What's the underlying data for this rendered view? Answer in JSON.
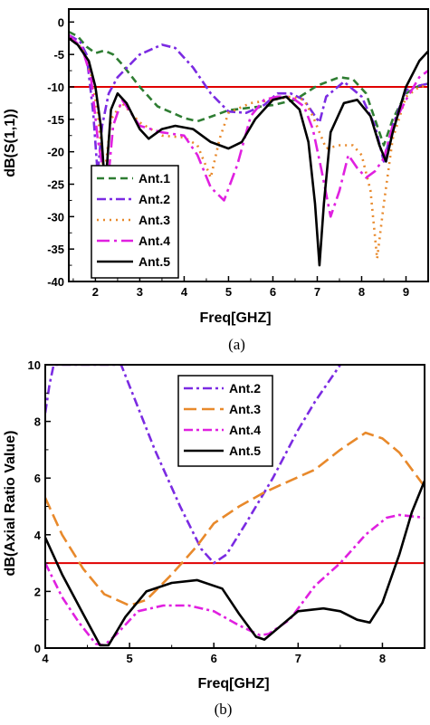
{
  "chart_data": [
    {
      "type": "line",
      "panel_label": "(a)",
      "xlabel": "Freq[GHZ]",
      "ylabel": "dB(S(1,1))",
      "xlim": [
        1.4,
        9.5
      ],
      "ylim": [
        -40,
        2
      ],
      "xticks": [
        "2",
        "3",
        "4",
        "5",
        "6",
        "7",
        "8",
        "9"
      ],
      "yticks": [
        "0",
        "-5",
        "-10",
        "-15",
        "-20",
        "-25",
        "-30",
        "-35",
        "-40"
      ],
      "grid": false,
      "legend_position": "bottom-left",
      "reference_line": {
        "y": -10,
        "color": "#e00000"
      },
      "series": [
        {
          "name": "Ant.1",
          "color": "#2e7d32",
          "dash": "8,5",
          "points": [
            [
              1.4,
              -1.5
            ],
            [
              1.6,
              -2.2
            ],
            [
              1.8,
              -3.8
            ],
            [
              2.0,
              -4.8
            ],
            [
              2.2,
              -4.4
            ],
            [
              2.4,
              -5.0
            ],
            [
              2.6,
              -6.5
            ],
            [
              3.0,
              -10.0
            ],
            [
              3.4,
              -13.0
            ],
            [
              4.0,
              -14.8
            ],
            [
              4.3,
              -15.3
            ],
            [
              4.6,
              -14.6
            ],
            [
              5.0,
              -13.6
            ],
            [
              5.5,
              -13.2
            ],
            [
              6.0,
              -12.8
            ],
            [
              6.5,
              -12.0
            ],
            [
              7.0,
              -9.8
            ],
            [
              7.5,
              -8.5
            ],
            [
              7.8,
              -8.8
            ],
            [
              8.1,
              -11.0
            ],
            [
              8.3,
              -15.0
            ],
            [
              8.5,
              -19.0
            ],
            [
              8.7,
              -15.0
            ],
            [
              9.0,
              -11.0
            ],
            [
              9.3,
              -9.8
            ],
            [
              9.5,
              -9.5
            ]
          ]
        },
        {
          "name": "Ant.2",
          "color": "#7b2be2",
          "dash": "10,4,3,4",
          "points": [
            [
              1.4,
              -2.0
            ],
            [
              1.65,
              -3.0
            ],
            [
              1.8,
              -5.0
            ],
            [
              1.95,
              -14.0
            ],
            [
              2.05,
              -23.5
            ],
            [
              2.15,
              -16.0
            ],
            [
              2.3,
              -11.0
            ],
            [
              2.5,
              -8.5
            ],
            [
              3.0,
              -5.0
            ],
            [
              3.5,
              -3.5
            ],
            [
              3.8,
              -4.0
            ],
            [
              4.2,
              -7.0
            ],
            [
              4.6,
              -11.0
            ],
            [
              5.0,
              -13.8
            ],
            [
              5.4,
              -14.0
            ],
            [
              5.8,
              -12.8
            ],
            [
              6.1,
              -11.0
            ],
            [
              6.4,
              -11.0
            ],
            [
              6.7,
              -12.0
            ],
            [
              6.9,
              -14.0
            ],
            [
              7.05,
              -15.5
            ],
            [
              7.2,
              -11.5
            ],
            [
              7.6,
              -9.2
            ],
            [
              8.0,
              -11.5
            ],
            [
              8.3,
              -16.0
            ],
            [
              8.5,
              -21.5
            ],
            [
              8.7,
              -16.0
            ],
            [
              9.0,
              -10.5
            ],
            [
              9.3,
              -9.8
            ],
            [
              9.5,
              -9.5
            ]
          ]
        },
        {
          "name": "Ant.3",
          "color": "#e8892b",
          "dash": "2,5",
          "points": [
            [
              1.4,
              -2.5
            ],
            [
              1.7,
              -4.0
            ],
            [
              1.9,
              -8.0
            ],
            [
              2.05,
              -14.0
            ],
            [
              2.2,
              -24.0
            ],
            [
              2.35,
              -15.0
            ],
            [
              2.6,
              -12.5
            ],
            [
              3.0,
              -15.5
            ],
            [
              3.5,
              -17.5
            ],
            [
              4.0,
              -17.8
            ],
            [
              4.3,
              -19.0
            ],
            [
              4.6,
              -24.0
            ],
            [
              4.8,
              -18.0
            ],
            [
              5.0,
              -14.0
            ],
            [
              5.5,
              -12.5
            ],
            [
              6.0,
              -12.0
            ],
            [
              6.4,
              -11.5
            ],
            [
              6.7,
              -12.0
            ],
            [
              6.9,
              -14.5
            ],
            [
              7.05,
              -17.0
            ],
            [
              7.2,
              -19.5
            ],
            [
              7.5,
              -19.0
            ],
            [
              7.8,
              -19.0
            ],
            [
              8.0,
              -20.5
            ],
            [
              8.2,
              -26.0
            ],
            [
              8.35,
              -36.5
            ],
            [
              8.5,
              -28.0
            ],
            [
              8.7,
              -18.0
            ],
            [
              9.0,
              -11.5
            ],
            [
              9.3,
              -10.0
            ],
            [
              9.5,
              -9.8
            ]
          ]
        },
        {
          "name": "Ant.4",
          "color": "#e020e0",
          "dash": "14,5,3,5",
          "points": [
            [
              1.4,
              -2.0
            ],
            [
              1.7,
              -4.0
            ],
            [
              1.9,
              -8.5
            ],
            [
              2.05,
              -18.0
            ],
            [
              2.15,
              -22.0
            ],
            [
              2.25,
              -27.0
            ],
            [
              2.4,
              -16.0
            ],
            [
              2.6,
              -12.0
            ],
            [
              3.0,
              -16.0
            ],
            [
              3.5,
              -17.0
            ],
            [
              4.0,
              -17.5
            ],
            [
              4.3,
              -20.5
            ],
            [
              4.6,
              -25.5
            ],
            [
              4.9,
              -27.5
            ],
            [
              5.2,
              -22.0
            ],
            [
              5.5,
              -14.5
            ],
            [
              5.8,
              -12.0
            ],
            [
              6.1,
              -11.5
            ],
            [
              6.4,
              -11.5
            ],
            [
              6.7,
              -13.0
            ],
            [
              6.9,
              -16.5
            ],
            [
              7.1,
              -23.0
            ],
            [
              7.3,
              -30.0
            ],
            [
              7.5,
              -26.0
            ],
            [
              7.7,
              -20.5
            ],
            [
              7.9,
              -22.5
            ],
            [
              8.1,
              -24.0
            ],
            [
              8.3,
              -23.0
            ],
            [
              8.5,
              -21.0
            ],
            [
              8.7,
              -16.0
            ],
            [
              9.0,
              -12.0
            ],
            [
              9.3,
              -8.5
            ],
            [
              9.5,
              -7.5
            ]
          ]
        },
        {
          "name": "Ant.5",
          "color": "#000000",
          "dash": "",
          "points": [
            [
              1.4,
              -2.5
            ],
            [
              1.6,
              -3.5
            ],
            [
              1.85,
              -6.0
            ],
            [
              2.0,
              -10.0
            ],
            [
              2.12,
              -16.0
            ],
            [
              2.22,
              -26.0
            ],
            [
              2.35,
              -13.5
            ],
            [
              2.5,
              -11.0
            ],
            [
              2.7,
              -12.5
            ],
            [
              3.0,
              -16.5
            ],
            [
              3.2,
              -18.0
            ],
            [
              3.5,
              -16.5
            ],
            [
              3.8,
              -16.0
            ],
            [
              4.2,
              -16.5
            ],
            [
              4.6,
              -18.5
            ],
            [
              5.0,
              -19.5
            ],
            [
              5.3,
              -18.5
            ],
            [
              5.6,
              -15.0
            ],
            [
              6.0,
              -12.0
            ],
            [
              6.3,
              -11.5
            ],
            [
              6.6,
              -13.5
            ],
            [
              6.8,
              -18.5
            ],
            [
              6.95,
              -28.0
            ],
            [
              7.05,
              -37.5
            ],
            [
              7.15,
              -28.0
            ],
            [
              7.3,
              -17.0
            ],
            [
              7.6,
              -12.5
            ],
            [
              7.9,
              -12.0
            ],
            [
              8.2,
              -14.5
            ],
            [
              8.4,
              -19.0
            ],
            [
              8.55,
              -21.5
            ],
            [
              8.7,
              -17.0
            ],
            [
              9.0,
              -10.0
            ],
            [
              9.3,
              -6.0
            ],
            [
              9.5,
              -4.5
            ]
          ]
        }
      ]
    },
    {
      "type": "line",
      "panel_label": "(b)",
      "xlabel": "Freq[GHZ]",
      "ylabel": "dB(Axial Ratio Value)",
      "xlim": [
        4,
        8.5
      ],
      "ylim": [
        0,
        10
      ],
      "xticks": [
        "4",
        "5",
        "6",
        "7",
        "8"
      ],
      "yticks": [
        "0",
        "2",
        "4",
        "6",
        "8",
        "10"
      ],
      "grid": false,
      "legend_position": "top-center",
      "reference_line": {
        "y": 3,
        "color": "#e00000"
      },
      "series": [
        {
          "name": "Ant.2",
          "color": "#7b2be2",
          "dash": "10,4,3,4",
          "points": [
            [
              4.0,
              8.3
            ],
            [
              4.05,
              9.3
            ],
            [
              4.1,
              10.0
            ],
            [
              4.9,
              10.0
            ],
            [
              5.3,
              7.0
            ],
            [
              5.6,
              5.0
            ],
            [
              5.85,
              3.5
            ],
            [
              6.0,
              3.0
            ],
            [
              6.15,
              3.3
            ],
            [
              6.4,
              4.5
            ],
            [
              6.7,
              6.0
            ],
            [
              7.0,
              7.7
            ],
            [
              7.2,
              8.7
            ],
            [
              7.5,
              10.0
            ]
          ]
        },
        {
          "name": "Ant.3",
          "color": "#e8892b",
          "dash": "14,6",
          "points": [
            [
              4.0,
              5.3
            ],
            [
              4.2,
              4.0
            ],
            [
              4.45,
              2.8
            ],
            [
              4.7,
              1.9
            ],
            [
              5.0,
              1.5
            ],
            [
              5.2,
              1.7
            ],
            [
              5.5,
              2.6
            ],
            [
              5.8,
              3.6
            ],
            [
              6.0,
              4.4
            ],
            [
              6.3,
              5.0
            ],
            [
              6.6,
              5.5
            ],
            [
              6.9,
              5.9
            ],
            [
              7.2,
              6.3
            ],
            [
              7.5,
              7.0
            ],
            [
              7.8,
              7.6
            ],
            [
              8.0,
              7.4
            ],
            [
              8.2,
              6.9
            ],
            [
              8.5,
              5.7
            ]
          ]
        },
        {
          "name": "Ant.4",
          "color": "#e020e0",
          "dash": "10,4,3,4",
          "points": [
            [
              4.0,
              3.0
            ],
            [
              4.2,
              1.8
            ],
            [
              4.4,
              0.9
            ],
            [
              4.6,
              0.15
            ],
            [
              4.7,
              0.1
            ],
            [
              4.85,
              0.5
            ],
            [
              5.1,
              1.3
            ],
            [
              5.4,
              1.5
            ],
            [
              5.7,
              1.5
            ],
            [
              6.0,
              1.3
            ],
            [
              6.3,
              0.8
            ],
            [
              6.55,
              0.45
            ],
            [
              6.65,
              0.5
            ],
            [
              6.9,
              1.0
            ],
            [
              7.2,
              2.2
            ],
            [
              7.5,
              3.0
            ],
            [
              7.8,
              4.0
            ],
            [
              8.05,
              4.6
            ],
            [
              8.2,
              4.7
            ],
            [
              8.5,
              4.6
            ]
          ]
        },
        {
          "name": "Ant.5",
          "color": "#000000",
          "dash": "",
          "points": [
            [
              4.0,
              3.9
            ],
            [
              4.2,
              2.6
            ],
            [
              4.45,
              1.2
            ],
            [
              4.65,
              0.1
            ],
            [
              4.75,
              0.1
            ],
            [
              4.95,
              1.1
            ],
            [
              5.2,
              2.0
            ],
            [
              5.5,
              2.3
            ],
            [
              5.8,
              2.4
            ],
            [
              6.1,
              2.1
            ],
            [
              6.3,
              1.2
            ],
            [
              6.5,
              0.4
            ],
            [
              6.6,
              0.3
            ],
            [
              6.8,
              0.8
            ],
            [
              7.0,
              1.3
            ],
            [
              7.3,
              1.4
            ],
            [
              7.5,
              1.3
            ],
            [
              7.7,
              1.0
            ],
            [
              7.85,
              0.9
            ],
            [
              8.0,
              1.6
            ],
            [
              8.2,
              3.3
            ],
            [
              8.35,
              4.8
            ],
            [
              8.5,
              5.9
            ]
          ]
        }
      ]
    }
  ]
}
